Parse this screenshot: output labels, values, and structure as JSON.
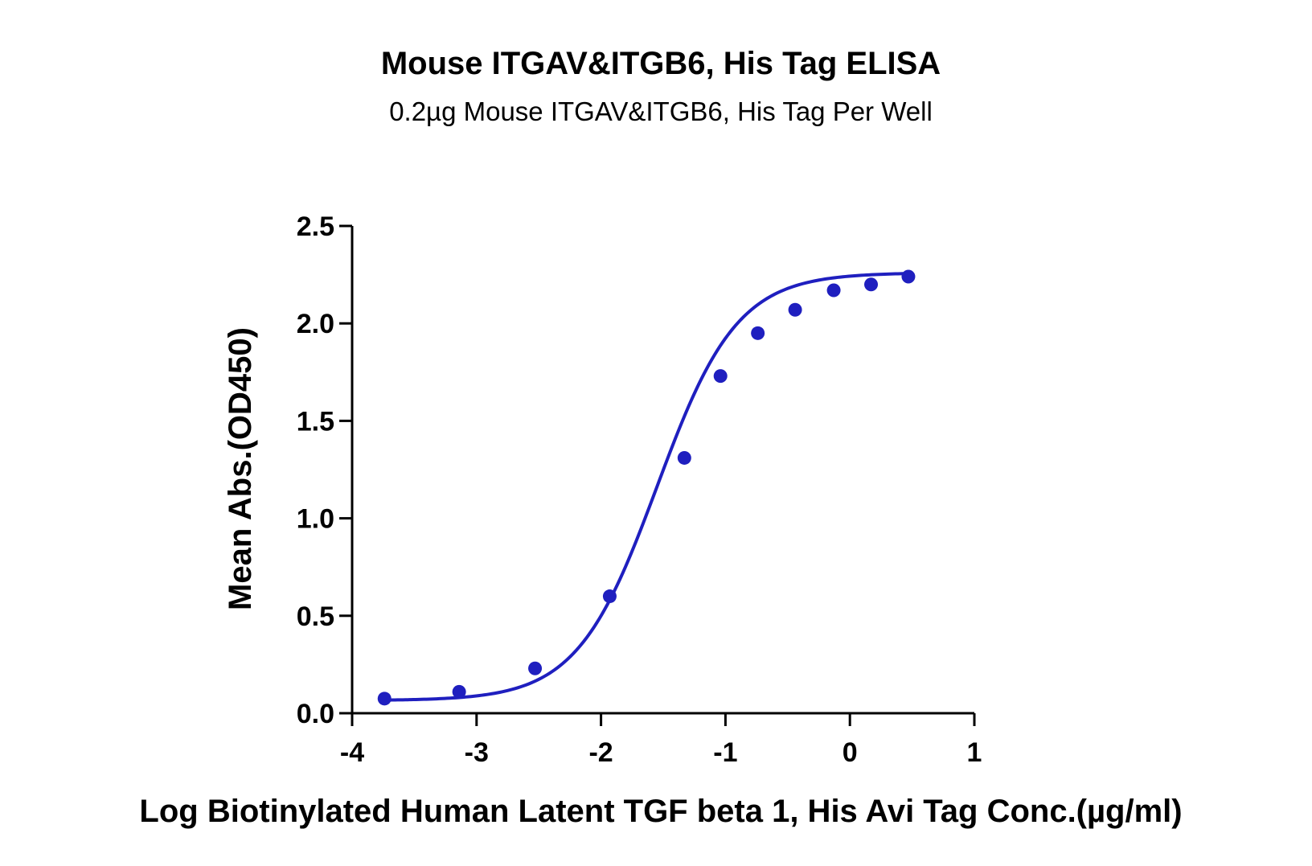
{
  "chart_data": {
    "type": "scatter",
    "title": "Mouse ITGAV&ITGB6, His Tag ELISA",
    "subtitle": "0.2µg Mouse ITGAV&ITGB6, His Tag Per Well",
    "xlabel": "Log Biotinylated Human Latent TGF beta 1, His Avi Tag Conc.(µg/ml)",
    "ylabel": "Mean Abs.(OD450)",
    "xlim": [
      -4,
      1
    ],
    "ylim": [
      0,
      2.5
    ],
    "xticks": [
      -4,
      -3,
      -2,
      -1,
      0,
      1
    ],
    "xtick_labels": [
      "-4",
      "-3",
      "-2",
      "-1",
      "0",
      "1"
    ],
    "yticks": [
      0,
      0.5,
      1,
      1.5,
      2,
      2.5
    ],
    "ytick_labels": [
      "0.0",
      "0.5",
      "1.0",
      "1.5",
      "2.0",
      "2.5"
    ],
    "grid": false,
    "colors": {
      "series": "#1f1fbf"
    },
    "series": [
      {
        "x": [
          -3.74,
          -3.14,
          -2.53,
          -1.93,
          -1.33,
          -1.04,
          -0.74,
          -0.44,
          -0.13,
          0.17,
          0.47
        ],
        "y": [
          0.075,
          0.11,
          0.23,
          0.6,
          1.31,
          1.73,
          1.95,
          2.07,
          2.17,
          2.2,
          2.24
        ],
        "fit": "four-parameter-logistic"
      }
    ]
  }
}
